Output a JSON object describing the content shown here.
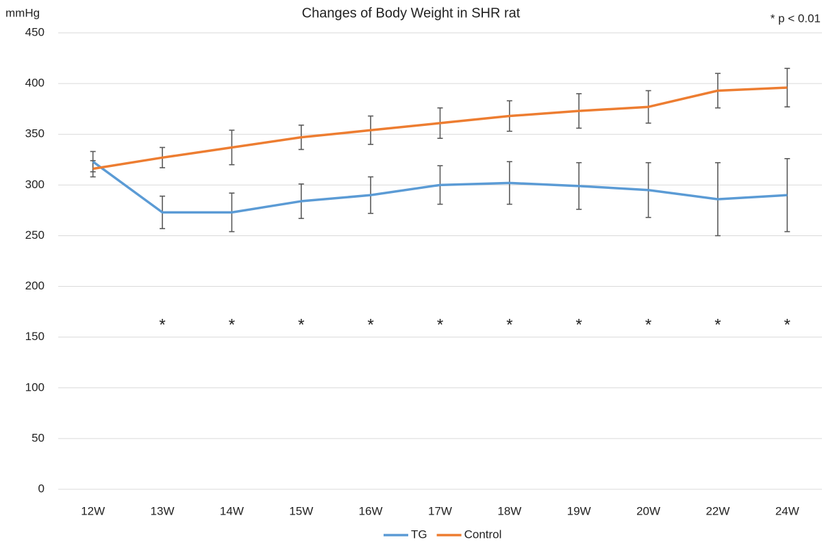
{
  "chart_data": {
    "type": "line",
    "title": "Changes of Body Weight in SHR rat",
    "y_label": "mmHg",
    "annotation": "* p < 0.01",
    "categories": [
      "12W",
      "13W",
      "14W",
      "15W",
      "16W",
      "17W",
      "18W",
      "19W",
      "20W",
      "22W",
      "24W"
    ],
    "series": [
      {
        "name": "TG",
        "color": "#5b9bd5",
        "values": [
          323,
          273,
          273,
          284,
          290,
          300,
          302,
          299,
          295,
          286,
          290
        ],
        "errors": [
          10,
          16,
          19,
          17,
          18,
          19,
          21,
          23,
          27,
          36,
          36
        ]
      },
      {
        "name": "Control",
        "color": "#ed7d31",
        "values": [
          316,
          327,
          337,
          347,
          354,
          361,
          368,
          373,
          377,
          393,
          396
        ],
        "errors": [
          8,
          10,
          17,
          12,
          14,
          15,
          15,
          17,
          16,
          17,
          19
        ]
      }
    ],
    "significance": [
      null,
      "*",
      "*",
      "*",
      "*",
      "*",
      "*",
      "*",
      "*",
      "*",
      "*"
    ],
    "ylim": [
      0,
      450
    ],
    "yticks": [
      0,
      50,
      100,
      150,
      200,
      250,
      300,
      350,
      400,
      450
    ],
    "grid": true,
    "legend": "bottom",
    "error_bar_color": "#595959"
  }
}
